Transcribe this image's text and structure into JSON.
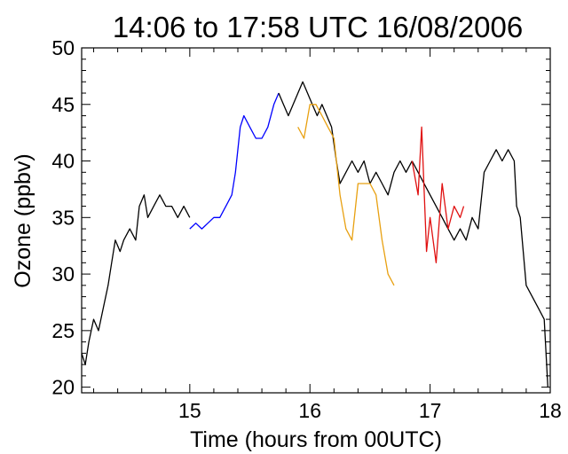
{
  "chart_data": {
    "type": "line",
    "title": "14:06 to 17:58 UTC 16/08/2006",
    "xlabel": "Time  (hours from 00UTC)",
    "ylabel": "Ozone (ppbv)",
    "xlim": [
      14.1,
      18.0
    ],
    "ylim": [
      19.5,
      50
    ],
    "x_ticks": [
      15,
      16,
      17,
      18
    ],
    "y_ticks": [
      20,
      25,
      30,
      35,
      40,
      45,
      50
    ],
    "grid": false,
    "series": [
      {
        "color": "#000000",
        "x": [
          14.1,
          14.13,
          14.16,
          14.2,
          14.24,
          14.28,
          14.32,
          14.35,
          14.38,
          14.42,
          14.45,
          14.5,
          14.55,
          14.58,
          14.62,
          14.65,
          14.7,
          14.75,
          14.8,
          14.85,
          14.9,
          14.95,
          15.0
        ],
        "y": [
          23,
          22,
          24,
          26,
          25,
          27,
          29,
          31,
          33,
          32,
          33,
          34,
          33,
          36,
          37,
          35,
          36,
          37,
          36,
          36,
          35,
          36,
          35
        ]
      },
      {
        "color": "#0000ff",
        "x": [
          15.0,
          15.05,
          15.1,
          15.15,
          15.2,
          15.25,
          15.3,
          15.35,
          15.38,
          15.42,
          15.45,
          15.5,
          15.55,
          15.6,
          15.65,
          15.7,
          15.74
        ],
        "y": [
          34,
          34.5,
          34,
          34.5,
          35,
          35,
          36,
          37,
          39,
          43,
          44,
          43,
          42,
          42,
          43,
          45,
          46
        ]
      },
      {
        "color": "#000000",
        "x": [
          15.74,
          15.78,
          15.82,
          15.86,
          15.9,
          15.94,
          15.98,
          16.02,
          16.06,
          16.1,
          16.14,
          16.18,
          16.22,
          16.25,
          16.3,
          16.35,
          16.4,
          16.45,
          16.5,
          16.55,
          16.6,
          16.65,
          16.7,
          16.75,
          16.8,
          16.85
        ],
        "y": [
          46,
          45,
          44,
          45,
          46,
          47,
          46,
          45,
          44,
          45,
          44,
          43,
          40,
          38,
          39,
          40,
          39,
          40,
          38,
          39,
          38,
          37,
          39,
          40,
          39,
          40
        ]
      },
      {
        "color": "#e8a010",
        "x": [
          15.9,
          15.95,
          16.0,
          16.05,
          16.1,
          16.15,
          16.2,
          16.25,
          16.3,
          16.35,
          16.4,
          16.45,
          16.5,
          16.55,
          16.6,
          16.65,
          16.7
        ],
        "y": [
          43,
          42,
          45,
          45,
          44,
          43,
          42,
          37,
          34,
          33,
          38,
          38,
          38,
          37,
          33,
          30,
          29
        ]
      },
      {
        "color": "#000000",
        "x": [
          16.85,
          16.9,
          16.95,
          17.0,
          17.05,
          17.1,
          17.15,
          17.2,
          17.25,
          17.3,
          17.35,
          17.4,
          17.45,
          17.5,
          17.55,
          17.6,
          17.65,
          17.7,
          17.72,
          17.75,
          17.8,
          17.85,
          17.9,
          17.95,
          17.98
        ],
        "y": [
          40,
          39,
          38,
          37,
          36,
          35,
          34,
          33,
          34,
          33,
          35,
          34,
          39,
          40,
          41,
          40,
          41,
          40,
          36,
          35,
          29,
          28,
          27,
          26,
          20
        ]
      },
      {
        "color": "#e01010",
        "x": [
          16.85,
          16.9,
          16.93,
          16.97,
          17.0,
          17.05,
          17.1,
          17.15,
          17.2,
          17.25,
          17.28
        ],
        "y": [
          40,
          37,
          43,
          32,
          35,
          31,
          38,
          34,
          36,
          35,
          36
        ]
      }
    ]
  }
}
